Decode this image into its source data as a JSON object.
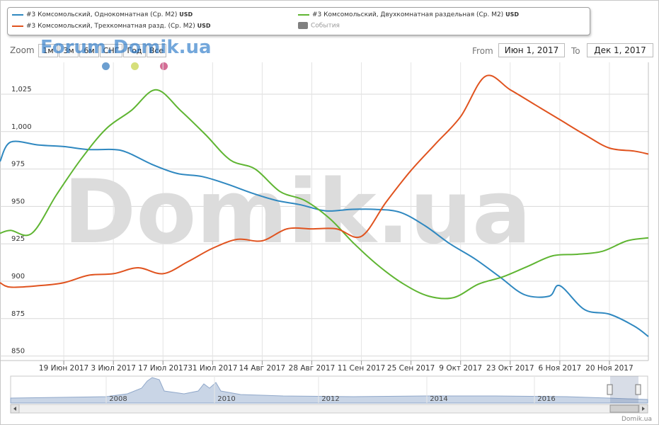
{
  "legend": {
    "items": [
      {
        "label": "#3 Комсомольский, Однокомнатная (Ср. M2)",
        "unit": "USD",
        "color": "#2f88c0"
      },
      {
        "label": "#3 Комсомольский, Двухкомнатная раздельная (Ср. M2)",
        "unit": "USD",
        "color": "#5fb532"
      },
      {
        "label": "#3 Комсомольский, Трехкомнатная разд. (Ср. M2)",
        "unit": "USD",
        "color": "#e0531f"
      }
    ],
    "events_label": "События"
  },
  "zoom": {
    "label": "Zoom",
    "buttons": [
      "1м",
      "3м",
      "6м",
      "СНГ",
      "Год",
      "Все"
    ]
  },
  "range": {
    "from_label": "From",
    "from_value": "Июн 1, 2017",
    "to_label": "To",
    "to_value": "Дек 1, 2017"
  },
  "watermark": {
    "top": "Forum.Domik.ua",
    "big": "Domik.ua"
  },
  "flag_colors": [
    "#6c9fd0",
    "#d6df7a",
    "#d46e96"
  ],
  "credit": "Domik.ua",
  "navigator": {
    "year_labels": [
      "2008",
      "2010",
      "2012",
      "2014",
      "2016"
    ]
  },
  "chart_data": {
    "type": "line",
    "title": "",
    "xlabel": "",
    "ylabel": "",
    "ylim": [
      850,
      1025
    ],
    "y_ticks": [
      "850",
      "875",
      "900",
      "925",
      "950",
      "975",
      "1,000",
      "1,025"
    ],
    "x_ticks": [
      "19 Июн 2017",
      "3 Июл 2017",
      "17 Июл 2017",
      "31 Июл 2017",
      "14 Авг 2017",
      "28 Авг 2017",
      "11 Сен 2017",
      "25 Сен 2017",
      "9 Окт 2017",
      "23 Окт 2017",
      "6 Ноя 2017",
      "20 Ноя 2017"
    ],
    "xlim": [
      "2017-06-01",
      "2017-12-01"
    ],
    "grid": true,
    "legend_position": "top",
    "series": [
      {
        "name": "#3 Комсомольский, Однокомнатная (Ср. M2)",
        "color": "#2f88c0",
        "x": [
          "2017-06-01",
          "2017-06-04",
          "2017-06-12",
          "2017-06-19",
          "2017-06-26",
          "2017-07-03",
          "2017-07-07",
          "2017-07-14",
          "2017-07-21",
          "2017-07-28",
          "2017-08-04",
          "2017-08-11",
          "2017-08-18",
          "2017-08-25",
          "2017-09-01",
          "2017-09-08",
          "2017-09-15",
          "2017-09-22",
          "2017-09-29",
          "2017-10-06",
          "2017-10-13",
          "2017-10-20",
          "2017-10-27",
          "2017-11-03",
          "2017-11-06",
          "2017-11-13",
          "2017-11-20",
          "2017-11-27",
          "2017-12-01"
        ],
        "y": [
          980,
          993,
          991,
          990,
          988,
          988,
          986,
          978,
          972,
          970,
          965,
          959,
          954,
          951,
          947,
          948,
          948,
          946,
          937,
          925,
          915,
          903,
          891,
          890,
          897,
          881,
          878,
          870,
          863
        ]
      },
      {
        "name": "#3 Комсомольский, Двухкомнатная раздельная (Ср. M2)",
        "color": "#5fb532",
        "x": [
          "2017-06-01",
          "2017-06-04",
          "2017-06-10",
          "2017-06-17",
          "2017-06-24",
          "2017-07-01",
          "2017-07-08",
          "2017-07-15",
          "2017-07-22",
          "2017-07-29",
          "2017-08-05",
          "2017-08-12",
          "2017-08-19",
          "2017-08-26",
          "2017-09-02",
          "2017-09-09",
          "2017-09-16",
          "2017-09-23",
          "2017-09-30",
          "2017-10-07",
          "2017-10-14",
          "2017-10-21",
          "2017-10-28",
          "2017-11-04",
          "2017-11-11",
          "2017-11-18",
          "2017-11-25",
          "2017-12-01"
        ],
        "y": [
          932,
          934,
          932,
          958,
          982,
          1002,
          1014,
          1028,
          1014,
          998,
          981,
          975,
          960,
          954,
          942,
          925,
          910,
          898,
          890,
          889,
          898,
          903,
          910,
          917,
          918,
          920,
          927,
          929
        ]
      },
      {
        "name": "#3 Комсомольский, Трехкомнатная разд. (Ср. M2)",
        "color": "#e0531f",
        "x": [
          "2017-06-01",
          "2017-06-04",
          "2017-06-12",
          "2017-06-19",
          "2017-06-26",
          "2017-07-03",
          "2017-07-10",
          "2017-07-17",
          "2017-07-24",
          "2017-07-31",
          "2017-08-07",
          "2017-08-14",
          "2017-08-21",
          "2017-08-28",
          "2017-09-04",
          "2017-09-11",
          "2017-09-18",
          "2017-09-25",
          "2017-10-02",
          "2017-10-09",
          "2017-10-16",
          "2017-10-23",
          "2017-10-30",
          "2017-11-06",
          "2017-11-13",
          "2017-11-20",
          "2017-11-27",
          "2017-12-01"
        ],
        "y": [
          899,
          896,
          897,
          899,
          904,
          905,
          909,
          905,
          913,
          922,
          928,
          927,
          935,
          935,
          935,
          930,
          953,
          974,
          992,
          1010,
          1037,
          1028,
          1018,
          1008,
          998,
          989,
          987,
          985
        ]
      }
    ]
  }
}
